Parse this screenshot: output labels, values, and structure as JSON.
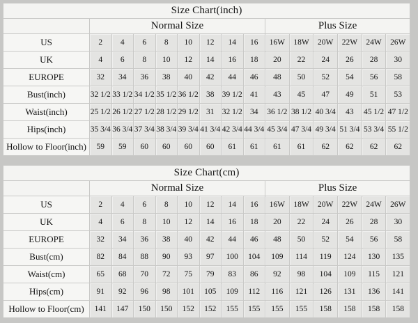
{
  "page": {
    "background_color": "#c7c7c5",
    "table_background_color": "#f4f4f2",
    "data_cell_color": "#e4e4e2",
    "border_color": "#c9c9c7",
    "text_color": "#141414"
  },
  "tables": [
    {
      "title": "Size Chart(inch)",
      "group_headers": [
        "Normal Size",
        "Plus Size"
      ],
      "normal_size_column_count": 8,
      "plus_size_column_count": 6,
      "rows": [
        {
          "label": "US",
          "values": [
            "2",
            "4",
            "6",
            "8",
            "10",
            "12",
            "14",
            "16",
            "16W",
            "18W",
            "20W",
            "22W",
            "24W",
            "26W"
          ]
        },
        {
          "label": "UK",
          "values": [
            "4",
            "6",
            "8",
            "10",
            "12",
            "14",
            "16",
            "18",
            "20",
            "22",
            "24",
            "26",
            "28",
            "30"
          ]
        },
        {
          "label": "EUROPE",
          "values": [
            "32",
            "34",
            "36",
            "38",
            "40",
            "42",
            "44",
            "46",
            "48",
            "50",
            "52",
            "54",
            "56",
            "58"
          ]
        },
        {
          "label": "Bust(inch)",
          "values": [
            "32 1/2",
            "33 1/2",
            "34 1/2",
            "35 1/2",
            "36 1/2",
            "38",
            "39 1/2",
            "41",
            "43",
            "45",
            "47",
            "49",
            "51",
            "53"
          ]
        },
        {
          "label": "Waist(inch)",
          "values": [
            "25 1/2",
            "26 1/2",
            "27 1/2",
            "28 1/2",
            "29 1/2",
            "31",
            "32 1/2",
            "34",
            "36 1/2",
            "38 1/2",
            "40 3/4",
            "43",
            "45 1/2",
            "47 1/2"
          ]
        },
        {
          "label": "Hips(inch)",
          "values": [
            "35 3/4",
            "36 3/4",
            "37 3/4",
            "38 3/4",
            "39 3/4",
            "41 3/4",
            "42 3/4",
            "44 3/4",
            "45 3/4",
            "47 3/4",
            "49 3/4",
            "51 3/4",
            "53 3/4",
            "55 1/2"
          ]
        },
        {
          "label": "Hollow to Floor(inch)",
          "values": [
            "59",
            "59",
            "60",
            "60",
            "60",
            "60",
            "61",
            "61",
            "61",
            "61",
            "62",
            "62",
            "62",
            "62"
          ]
        }
      ]
    },
    {
      "title": "Size Chart(cm)",
      "group_headers": [
        "Normal Size",
        "Plus Size"
      ],
      "normal_size_column_count": 8,
      "plus_size_column_count": 6,
      "rows": [
        {
          "label": "US",
          "values": [
            "2",
            "4",
            "6",
            "8",
            "10",
            "12",
            "14",
            "16",
            "16W",
            "18W",
            "20W",
            "22W",
            "24W",
            "26W"
          ]
        },
        {
          "label": "UK",
          "values": [
            "4",
            "6",
            "8",
            "10",
            "12",
            "14",
            "16",
            "18",
            "20",
            "22",
            "24",
            "26",
            "28",
            "30"
          ]
        },
        {
          "label": "EUROPE",
          "values": [
            "32",
            "34",
            "36",
            "38",
            "40",
            "42",
            "44",
            "46",
            "48",
            "50",
            "52",
            "54",
            "56",
            "58"
          ]
        },
        {
          "label": "Bust(cm)",
          "values": [
            "82",
            "84",
            "88",
            "90",
            "93",
            "97",
            "100",
            "104",
            "109",
            "114",
            "119",
            "124",
            "130",
            "135"
          ]
        },
        {
          "label": "Waist(cm)",
          "values": [
            "65",
            "68",
            "70",
            "72",
            "75",
            "79",
            "83",
            "86",
            "92",
            "98",
            "104",
            "109",
            "115",
            "121"
          ]
        },
        {
          "label": "Hips(cm)",
          "values": [
            "91",
            "92",
            "96",
            "98",
            "101",
            "105",
            "109",
            "112",
            "116",
            "121",
            "126",
            "131",
            "136",
            "141"
          ]
        },
        {
          "label": "Hollow to Floor(cm)",
          "values": [
            "141",
            "147",
            "150",
            "150",
            "152",
            "152",
            "155",
            "155",
            "155",
            "155",
            "158",
            "158",
            "158",
            "158"
          ]
        }
      ]
    }
  ],
  "chart_data": [
    {
      "type": "table",
      "title": "Size Chart(inch)",
      "column_groups": [
        {
          "name": "Normal Size",
          "columns": [
            "2",
            "4",
            "6",
            "8",
            "10",
            "12",
            "14",
            "16"
          ]
        },
        {
          "name": "Plus Size",
          "columns": [
            "16W",
            "18W",
            "20W",
            "22W",
            "24W",
            "26W"
          ]
        }
      ],
      "rows": {
        "US": [
          "2",
          "4",
          "6",
          "8",
          "10",
          "12",
          "14",
          "16",
          "16W",
          "18W",
          "20W",
          "22W",
          "24W",
          "26W"
        ],
        "UK": [
          4,
          6,
          8,
          10,
          12,
          14,
          16,
          18,
          20,
          22,
          24,
          26,
          28,
          30
        ],
        "EUROPE": [
          32,
          34,
          36,
          38,
          40,
          42,
          44,
          46,
          48,
          50,
          52,
          54,
          56,
          58
        ],
        "Bust(inch)": [
          32.5,
          33.5,
          34.5,
          35.5,
          36.5,
          38,
          39.5,
          41,
          43,
          45,
          47,
          49,
          51,
          53
        ],
        "Waist(inch)": [
          25.5,
          26.5,
          27.5,
          28.5,
          29.5,
          31,
          32.5,
          34,
          36.5,
          38.5,
          40.75,
          43,
          45.5,
          47.5
        ],
        "Hips(inch)": [
          35.75,
          36.75,
          37.75,
          38.75,
          39.75,
          41.75,
          42.75,
          44.75,
          45.75,
          47.75,
          49.75,
          51.75,
          53.75,
          55.5
        ],
        "Hollow to Floor(inch)": [
          59,
          59,
          60,
          60,
          60,
          60,
          61,
          61,
          61,
          61,
          62,
          62,
          62,
          62
        ]
      }
    },
    {
      "type": "table",
      "title": "Size Chart(cm)",
      "column_groups": [
        {
          "name": "Normal Size",
          "columns": [
            "2",
            "4",
            "6",
            "8",
            "10",
            "12",
            "14",
            "16"
          ]
        },
        {
          "name": "Plus Size",
          "columns": [
            "16W",
            "18W",
            "20W",
            "22W",
            "24W",
            "26W"
          ]
        }
      ],
      "rows": {
        "US": [
          "2",
          "4",
          "6",
          "8",
          "10",
          "12",
          "14",
          "16",
          "16W",
          "18W",
          "20W",
          "22W",
          "24W",
          "26W"
        ],
        "UK": [
          4,
          6,
          8,
          10,
          12,
          14,
          16,
          18,
          20,
          22,
          24,
          26,
          28,
          30
        ],
        "EUROPE": [
          32,
          34,
          36,
          38,
          40,
          42,
          44,
          46,
          48,
          50,
          52,
          54,
          56,
          58
        ],
        "Bust(cm)": [
          82,
          84,
          88,
          90,
          93,
          97,
          100,
          104,
          109,
          114,
          119,
          124,
          130,
          135
        ],
        "Waist(cm)": [
          65,
          68,
          70,
          72,
          75,
          79,
          83,
          86,
          92,
          98,
          104,
          109,
          115,
          121
        ],
        "Hips(cm)": [
          91,
          92,
          96,
          98,
          101,
          105,
          109,
          112,
          116,
          121,
          126,
          131,
          136,
          141
        ],
        "Hollow to Floor(cm)": [
          141,
          147,
          150,
          150,
          152,
          152,
          155,
          155,
          155,
          155,
          158,
          158,
          158,
          158
        ]
      }
    }
  ]
}
